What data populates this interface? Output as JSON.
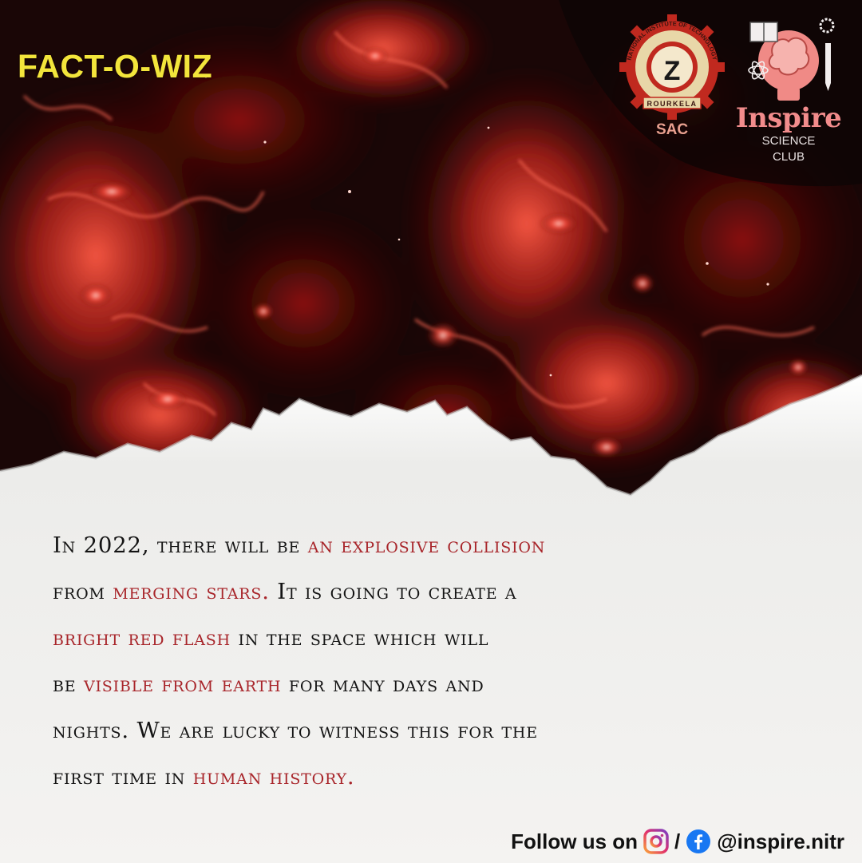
{
  "poster": {
    "title": "FACT-O-WIZ",
    "logos": {
      "sac": {
        "ring_top": "NATIONAL INSTITUTE OF TECHNOLOGY",
        "ring_bottom": "ROURKELA",
        "label": "SAC",
        "emblem_letter": "Z"
      },
      "inspire": {
        "name": "Inspire",
        "sub1": "SCIENCE",
        "sub2": "CLUB"
      }
    },
    "fact": {
      "lines": [
        [
          {
            "text": " In 2022, there will be ",
            "hl": false
          },
          {
            "text": "an explosive collision",
            "hl": true
          }
        ],
        [
          {
            "text": "from ",
            "hl": false
          },
          {
            "text": "merging stars.",
            "hl": true
          },
          {
            "text": " It is going to create a",
            "hl": false
          }
        ],
        [
          {
            "text": "bright red flash",
            "hl": true
          },
          {
            "text": " in the space which will",
            "hl": false
          }
        ],
        [
          {
            "text": "be ",
            "hl": false
          },
          {
            "text": "visible from earth",
            "hl": true
          },
          {
            "text": " for many days and",
            "hl": false
          }
        ],
        [
          {
            "text": "nights. We are lucky to witness this for the",
            "hl": false
          }
        ],
        [
          {
            "text": "first time in ",
            "hl": false
          },
          {
            "text": "human history.",
            "hl": true
          }
        ]
      ]
    },
    "footer": {
      "follow_text": "Follow us on",
      "separator": "/",
      "handle": "@inspire.nitr",
      "icons": [
        "instagram-icon",
        "facebook-icon"
      ]
    },
    "colors": {
      "title": "#f3e53b",
      "highlight": "#a8252a",
      "body_text": "#141414",
      "nebula_dark": "#1a0606",
      "nebula_red": "#c42a22",
      "paper": "#f4f3f1"
    }
  }
}
